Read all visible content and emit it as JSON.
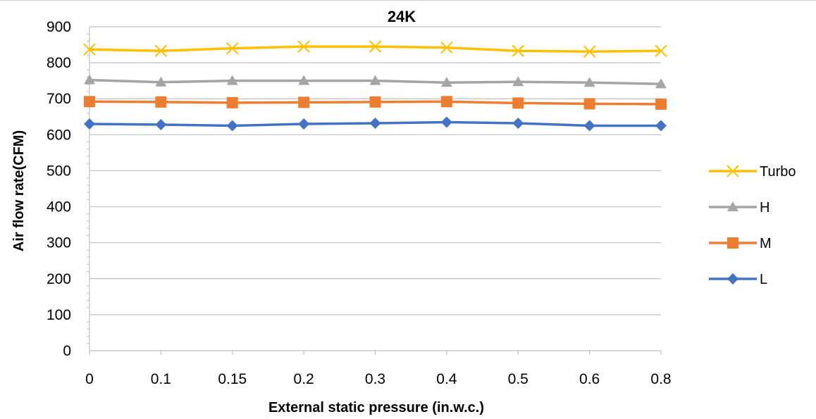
{
  "chart_data": {
    "type": "line",
    "title": "24K",
    "xlabel": "External static pressure (in.w.c.)",
    "ylabel": "Air flow rate(CFM)",
    "categories": [
      "0",
      "0.1",
      "0.15",
      "0.2",
      "0.3",
      "0.4",
      "0.5",
      "0.6",
      "0.8"
    ],
    "ylim": [
      0,
      900
    ],
    "yticks": [
      0,
      100,
      200,
      300,
      400,
      500,
      600,
      700,
      800,
      900
    ],
    "grid": "horizontal",
    "legend_position": "right",
    "series": [
      {
        "name": "Turbo",
        "color": "#FFC000",
        "marker": "x",
        "values": [
          837,
          833,
          840,
          845,
          845,
          842,
          833,
          831,
          833
        ]
      },
      {
        "name": "H",
        "color": "#A5A5A5",
        "marker": "triangle",
        "values": [
          752,
          746,
          750,
          750,
          750,
          745,
          747,
          745,
          741
        ]
      },
      {
        "name": "M",
        "color": "#ED7D31",
        "marker": "square",
        "values": [
          692,
          691,
          689,
          690,
          691,
          692,
          688,
          686,
          685
        ]
      },
      {
        "name": "L",
        "color": "#4472C4",
        "marker": "diamond",
        "values": [
          630,
          628,
          625,
          630,
          632,
          635,
          632,
          625,
          625
        ]
      }
    ]
  }
}
